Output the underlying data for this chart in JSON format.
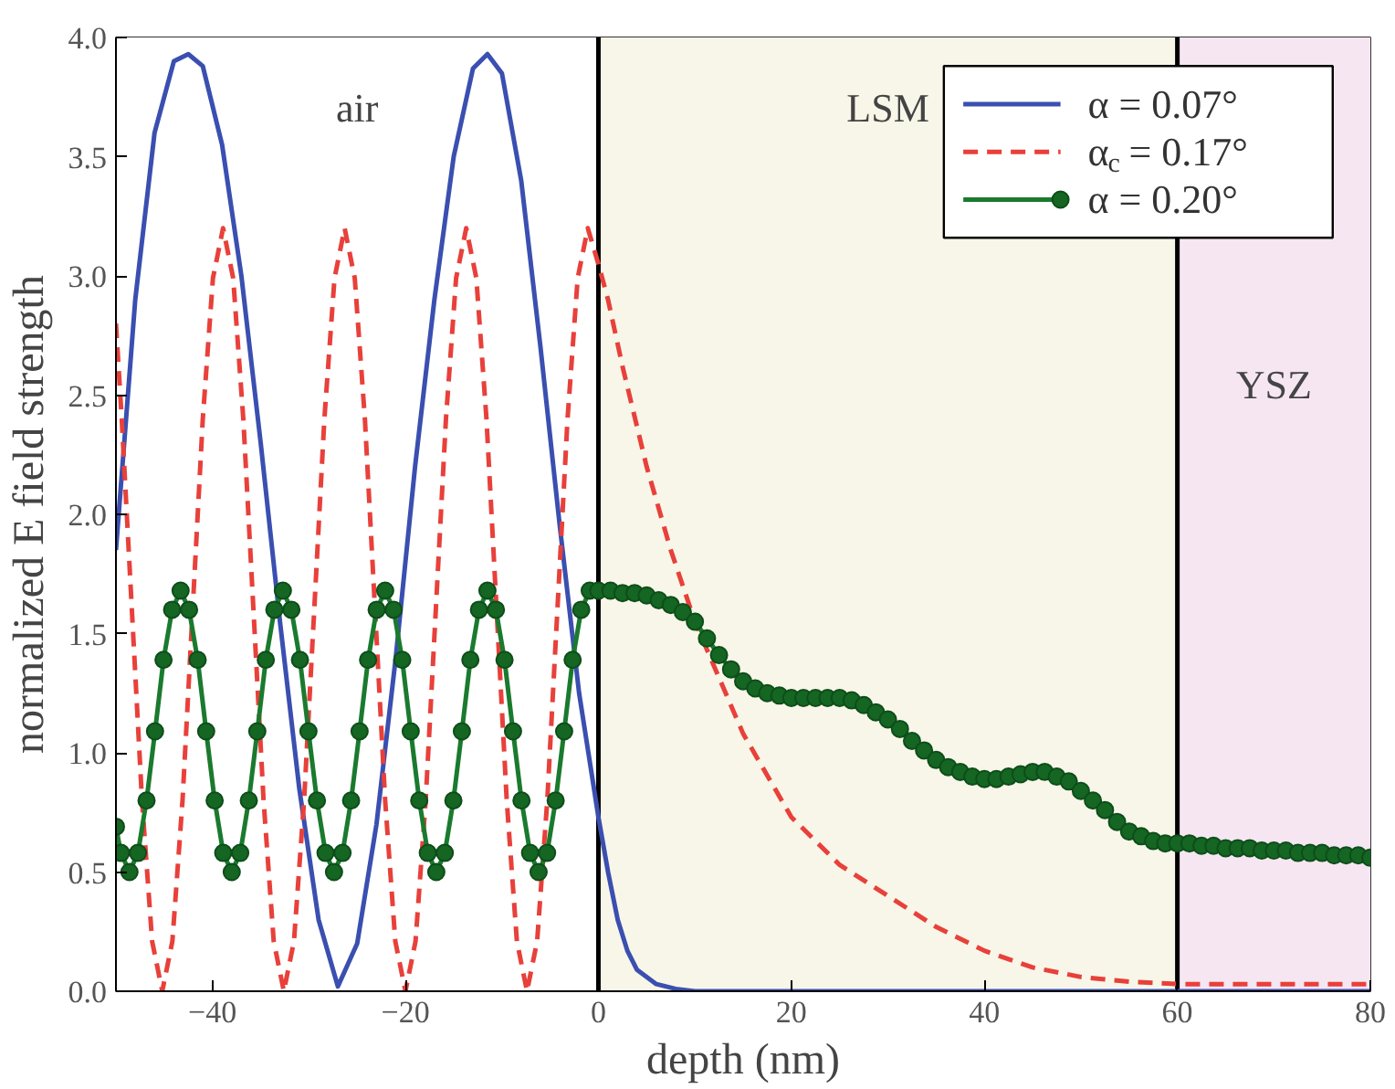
{
  "chart_data": {
    "type": "line",
    "xlabel": "depth (nm)",
    "ylabel": "normalized E field strength",
    "xlim": [
      -50,
      80
    ],
    "ylim": [
      0,
      4
    ],
    "xticks": [
      -40,
      -20,
      0,
      20,
      40,
      60,
      80
    ],
    "yticks": [
      {
        "value": 0,
        "label": "0.0"
      },
      {
        "value": 0.5,
        "label": "0.5"
      },
      {
        "value": 1,
        "label": "1.0"
      },
      {
        "value": 1.5,
        "label": "1.5"
      },
      {
        "value": 2,
        "label": "2.0"
      },
      {
        "value": 2.5,
        "label": "2.5"
      },
      {
        "value": 3,
        "label": "3.0"
      },
      {
        "value": 3.5,
        "label": "3.5"
      },
      {
        "value": 4,
        "label": "4.0"
      }
    ],
    "legend": "top right",
    "bands": [
      {
        "axis": "x",
        "from": -50,
        "to": 0,
        "label": "air",
        "color": "#ffffff"
      },
      {
        "axis": "x",
        "from": 0,
        "to": 60,
        "label": "LSM",
        "color": "#f8f6e8"
      },
      {
        "axis": "x",
        "from": 60,
        "to": 80,
        "label": "YSZ",
        "color": "#f6e6f2"
      }
    ],
    "ref_lines": [
      {
        "axis": "x",
        "value": 0,
        "color": "#000000"
      },
      {
        "axis": "x",
        "value": 60,
        "color": "#000000"
      }
    ],
    "series": [
      {
        "name": "α = 0.07°",
        "color": "#3a4fb0",
        "line_style": "solid",
        "marker": "none",
        "x": [
          -50,
          -48,
          -46,
          -44,
          -42.5,
          -41,
          -39,
          -37,
          -35,
          -33,
          -31,
          -29,
          -27,
          -25,
          -23,
          -21,
          -19,
          -17,
          -15,
          -13,
          -11.5,
          -10,
          -8,
          -6,
          -4,
          -2,
          0,
          1,
          2,
          3,
          4,
          6,
          8,
          10,
          20,
          40,
          60,
          80
        ],
        "values": [
          1.85,
          2.9,
          3.6,
          3.9,
          3.93,
          3.88,
          3.55,
          3.0,
          2.3,
          1.55,
          0.85,
          0.3,
          0.02,
          0.2,
          0.7,
          1.4,
          2.2,
          2.9,
          3.5,
          3.87,
          3.93,
          3.85,
          3.4,
          2.7,
          1.95,
          1.25,
          0.73,
          0.5,
          0.3,
          0.17,
          0.09,
          0.03,
          0.01,
          0,
          0,
          0,
          0,
          0
        ]
      },
      {
        "name": "α$_{c}$ = 0.17°",
        "color": "#e8403a",
        "line_style": "dashed",
        "marker": "none",
        "x": [
          -50,
          -49.4,
          -48.35,
          -47.3,
          -46.25,
          -45.2,
          -44.15,
          -43.1,
          -42.05,
          -41.0,
          -39.95,
          -38.9,
          -37.85,
          -36.8,
          -35.75,
          -34.7,
          -33.65,
          -32.6,
          -31.55,
          -30.5,
          -29.45,
          -28.4,
          -27.35,
          -26.3,
          -25.25,
          -24.2,
          -23.15,
          -22.1,
          -21.05,
          -20.0,
          -18.95,
          -17.9,
          -16.85,
          -15.8,
          -14.75,
          -13.7,
          -12.65,
          -11.6,
          -10.55,
          -9.5,
          -8.45,
          -7.4,
          -6.35,
          -5.3,
          -4.25,
          -3.2,
          -2.15,
          -1.1,
          0,
          1,
          2.5,
          5,
          7.5,
          10,
          15,
          20,
          25,
          30,
          35,
          40,
          45,
          50,
          55,
          60,
          70,
          80
        ],
        "values": [
          2.8,
          2.4,
          1.6,
          0.8,
          0.21,
          0,
          0.21,
          0.8,
          1.6,
          2.4,
          2.99,
          3.2,
          2.99,
          2.4,
          1.6,
          0.8,
          0.21,
          0,
          0.21,
          0.8,
          1.6,
          2.4,
          2.99,
          3.2,
          2.99,
          2.4,
          1.6,
          0.8,
          0.21,
          0,
          0.21,
          0.8,
          1.6,
          2.4,
          2.99,
          3.2,
          2.99,
          2.4,
          1.6,
          0.8,
          0.21,
          0,
          0.21,
          0.8,
          1.6,
          2.4,
          2.99,
          3.2,
          3.05,
          2.9,
          2.62,
          2.2,
          1.85,
          1.55,
          1.08,
          0.73,
          0.53,
          0.4,
          0.27,
          0.17,
          0.1,
          0.06,
          0.04,
          0.03,
          0.03,
          0.03
        ]
      },
      {
        "name": "α = 0.20°",
        "color": "#1a7a2e",
        "line_style": "solid",
        "marker": "circle",
        "x": [
          -50,
          -49.48,
          -48.6,
          -47.72,
          -46.83,
          -45.95,
          -45.07,
          -44.18,
          -43.3,
          -42.42,
          -41.53,
          -40.65,
          -39.77,
          -38.88,
          -38.0,
          -37.12,
          -36.23,
          -35.35,
          -34.47,
          -33.58,
          -32.7,
          -31.82,
          -30.93,
          -30.05,
          -29.17,
          -28.28,
          -27.4,
          -26.52,
          -25.63,
          -24.75,
          -23.87,
          -22.98,
          -22.1,
          -21.22,
          -20.33,
          -19.45,
          -18.57,
          -17.68,
          -16.8,
          -15.92,
          -15.03,
          -14.15,
          -13.27,
          -12.38,
          -11.5,
          -10.62,
          -9.73,
          -8.85,
          -7.97,
          -7.08,
          -6.2,
          -5.32,
          -4.43,
          -3.55,
          -2.67,
          -1.78,
          -0.9,
          0,
          1.25,
          2.5,
          3.75,
          5,
          6.25,
          7.5,
          8.75,
          10,
          11.25,
          12.5,
          13.75,
          15,
          16.25,
          17.5,
          18.75,
          20,
          21.25,
          22.5,
          23.75,
          25,
          26.25,
          27.5,
          28.75,
          30,
          31.25,
          32.5,
          33.75,
          35,
          36.25,
          37.5,
          38.75,
          40,
          41.25,
          42.5,
          43.75,
          45,
          46.25,
          47.5,
          48.75,
          50,
          51.25,
          52.5,
          53.75,
          55,
          56.25,
          57.5,
          58.75,
          60,
          61.25,
          62.5,
          63.75,
          65,
          66.25,
          67.5,
          68.75,
          70,
          71.25,
          72.5,
          73.75,
          75,
          76.25,
          77.5,
          78.75,
          80
        ],
        "values": [
          0.69,
          0.58,
          0.5,
          0.58,
          0.8,
          1.09,
          1.39,
          1.6,
          1.68,
          1.6,
          1.39,
          1.09,
          0.8,
          0.58,
          0.5,
          0.58,
          0.8,
          1.09,
          1.39,
          1.6,
          1.68,
          1.6,
          1.39,
          1.09,
          0.8,
          0.58,
          0.5,
          0.58,
          0.8,
          1.09,
          1.39,
          1.6,
          1.68,
          1.6,
          1.39,
          1.09,
          0.8,
          0.58,
          0.5,
          0.58,
          0.8,
          1.09,
          1.39,
          1.6,
          1.68,
          1.6,
          1.39,
          1.09,
          0.8,
          0.58,
          0.5,
          0.58,
          0.8,
          1.09,
          1.39,
          1.6,
          1.68,
          1.68,
          1.68,
          1.67,
          1.67,
          1.66,
          1.64,
          1.62,
          1.59,
          1.55,
          1.48,
          1.41,
          1.35,
          1.3,
          1.27,
          1.25,
          1.24,
          1.23,
          1.23,
          1.23,
          1.23,
          1.23,
          1.22,
          1.2,
          1.17,
          1.14,
          1.1,
          1.05,
          1.01,
          0.97,
          0.94,
          0.92,
          0.9,
          0.89,
          0.89,
          0.9,
          0.91,
          0.92,
          0.92,
          0.9,
          0.88,
          0.84,
          0.8,
          0.76,
          0.71,
          0.67,
          0.65,
          0.63,
          0.62,
          0.62,
          0.62,
          0.61,
          0.61,
          0.6,
          0.6,
          0.6,
          0.59,
          0.59,
          0.59,
          0.58,
          0.58,
          0.58,
          0.57,
          0.57,
          0.57,
          0.56
        ]
      }
    ]
  }
}
